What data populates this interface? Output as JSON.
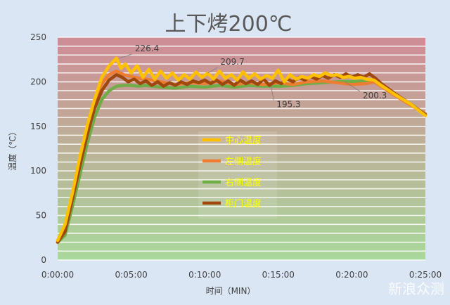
{
  "chart_data": {
    "type": "line",
    "title": "上下烤200℃",
    "xlabel": "时间（MIN）",
    "ylabel": "温度（℃）",
    "xlim": [
      0,
      25
    ],
    "ylim": [
      0,
      250
    ],
    "x_ticks": [
      "0:00:00",
      "0:05:00",
      "0:10:00",
      "0:15:00",
      "0:20:00",
      "0:25:00"
    ],
    "y_ticks": [
      0,
      50,
      100,
      150,
      200,
      250
    ],
    "grid": true,
    "legend": "center",
    "background_bands": {
      "top_color": "#cf8c95",
      "bottom_color": "#a9d89b"
    },
    "series": [
      {
        "name": "中心温度",
        "color": "#ffc000",
        "x": [
          0,
          0.5,
          1,
          1.5,
          2,
          2.5,
          3,
          3.5,
          4,
          4.3,
          4.6,
          5,
          5.4,
          5.8,
          6.2,
          6.6,
          7,
          7.4,
          7.8,
          8.2,
          8.6,
          9,
          9.4,
          9.8,
          10.2,
          10.6,
          11,
          11.4,
          11.8,
          12.2,
          12.6,
          13,
          13.4,
          13.8,
          14.2,
          14.6,
          15,
          15.4,
          15.8,
          16.2,
          16.6,
          17,
          17.4,
          17.8,
          18.2,
          18.6,
          19,
          19.4,
          19.8,
          20.2,
          20.6,
          21,
          21.5,
          22,
          23,
          24,
          25
        ],
        "y": [
          22,
          40,
          75,
          115,
          150,
          180,
          205,
          218,
          226.4,
          215,
          220,
          210,
          218,
          205,
          214,
          203,
          212,
          204,
          210,
          202,
          208,
          203,
          211,
          205,
          209.7,
          203,
          212,
          204,
          208,
          202,
          211,
          204,
          209,
          203,
          207,
          204,
          213,
          200,
          208,
          203,
          206,
          204,
          208,
          206,
          210,
          207,
          208,
          205,
          206,
          204,
          205,
          203,
          202,
          196,
          185,
          175,
          162
        ]
      },
      {
        "name": "左侧温度",
        "color": "#ed7d31",
        "x": [
          0,
          0.5,
          1,
          1.5,
          2,
          2.5,
          3,
          3.5,
          4,
          4.5,
          5,
          5.5,
          6,
          7,
          8,
          9,
          10,
          11,
          12,
          13,
          14,
          15,
          16,
          17,
          18,
          19,
          20,
          21,
          21.5,
          22,
          23,
          24,
          25
        ],
        "y": [
          20,
          35,
          70,
          110,
          145,
          175,
          198,
          208,
          212,
          208,
          206,
          204,
          203,
          200,
          197,
          199,
          198,
          201,
          197,
          199,
          197,
          199,
          197,
          200,
          201,
          199,
          197,
          198,
          200,
          195,
          184,
          174,
          164
        ]
      },
      {
        "name": "右侧温度",
        "color": "#70ad47",
        "x": [
          0,
          0.5,
          1,
          1.5,
          2,
          2.5,
          3,
          3.5,
          4,
          4.5,
          5,
          5.5,
          6,
          7,
          8,
          9,
          10,
          11,
          12,
          13,
          14,
          14.5,
          15,
          16,
          17,
          18,
          19,
          19.5,
          20,
          21,
          21.5,
          22,
          23,
          24,
          25
        ],
        "y": [
          20,
          28,
          60,
          95,
          130,
          160,
          180,
          190,
          195,
          196,
          196,
          195,
          196,
          194,
          193,
          195,
          194,
          196,
          194,
          196,
          195,
          195.3,
          195,
          196,
          198,
          199,
          200,
          200.3,
          200,
          201,
          202,
          196,
          185,
          174,
          164
        ]
      },
      {
        "name": "柜门温度",
        "color": "#9e480e",
        "x": [
          0,
          0.5,
          1,
          1.5,
          2,
          2.5,
          3,
          3.5,
          4,
          4.4,
          4.8,
          5.2,
          5.6,
          6,
          6.4,
          6.8,
          7.2,
          7.6,
          8,
          8.4,
          8.8,
          9.2,
          9.6,
          10,
          10.4,
          10.8,
          11.2,
          11.6,
          12,
          12.4,
          12.8,
          13.2,
          13.6,
          14,
          14.4,
          14.8,
          15.2,
          15.6,
          16,
          16.4,
          16.8,
          17.2,
          17.6,
          18,
          18.4,
          18.8,
          19.2,
          19.6,
          20,
          20.4,
          20.8,
          21.2,
          21.6,
          22,
          23,
          24,
          25
        ],
        "y": [
          20,
          32,
          68,
          105,
          140,
          170,
          190,
          202,
          208,
          205,
          200,
          203,
          198,
          201,
          196,
          200,
          195,
          199,
          196,
          200,
          197,
          201,
          199,
          202,
          198,
          202,
          197,
          201,
          196,
          202,
          198,
          201,
          197,
          203,
          196,
          201,
          198,
          203,
          200,
          205,
          202,
          206,
          203,
          207,
          204,
          208,
          205,
          209,
          205,
          208,
          205,
          209,
          204,
          198,
          186,
          175,
          163
        ]
      }
    ],
    "annotations": [
      {
        "text": "226.4",
        "x": 4.2,
        "y": 226.4
      },
      {
        "text": "209.7",
        "x": 10.2,
        "y": 209.7
      },
      {
        "text": "195.3",
        "x": 14.5,
        "y": 195.3
      },
      {
        "text": "200.3",
        "x": 19.5,
        "y": 200.3
      }
    ]
  },
  "watermark": "新浪众测"
}
